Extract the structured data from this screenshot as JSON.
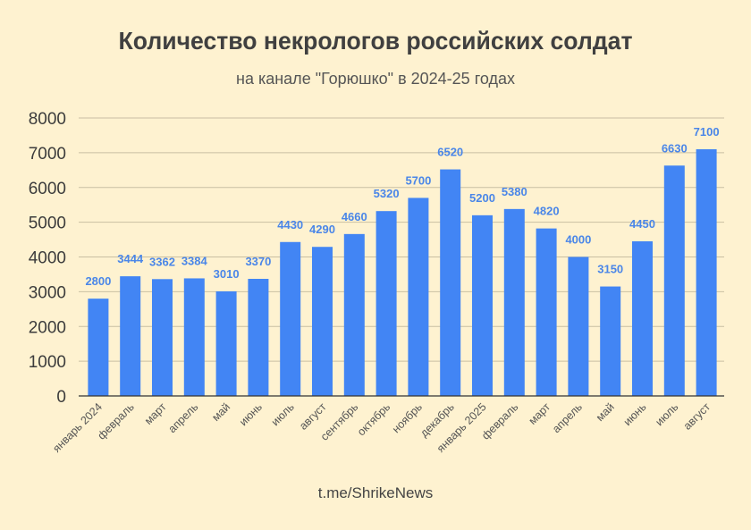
{
  "chart_data": {
    "type": "bar",
    "title": "Количество некрологов российских солдат",
    "subtitle": "на канале \"Горюшко\" в 2024-25 годах",
    "categories": [
      "январь 2024",
      "февраль",
      "март",
      "апрель",
      "май",
      "июнь",
      "июль",
      "август",
      "сентябрь",
      "октябрь",
      "ноябрь",
      "декабрь",
      "январь 2025",
      "февраль",
      "март",
      "апрель",
      "май",
      "июнь",
      "июль",
      "август"
    ],
    "values": [
      2800,
      3444,
      3362,
      3384,
      3010,
      3370,
      4430,
      4290,
      4660,
      5320,
      5700,
      6520,
      5200,
      5380,
      4820,
      4000,
      3150,
      4450,
      6630,
      7100
    ],
    "ylim": [
      0,
      8000
    ],
    "yticks": [
      0,
      1000,
      2000,
      3000,
      4000,
      5000,
      6000,
      7000,
      8000
    ],
    "grid": true,
    "legend": "none",
    "colors": {
      "bar": "#4285f4",
      "data_label": "#4a86e8",
      "background": "#fef2d0",
      "grid": "#c9bfa3"
    }
  },
  "footer": "t.me/ShrikeNews"
}
